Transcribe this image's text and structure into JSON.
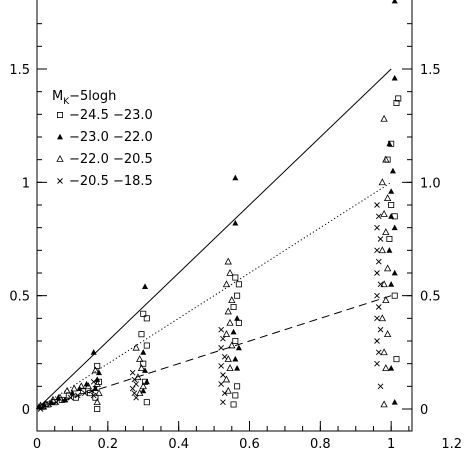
{
  "chart_data": {
    "type": "scatter",
    "xlim": [
      0,
      1.2
    ],
    "ylim": [
      -0.05,
      1.8
    ],
    "x_ticks": [
      0,
      0.2,
      0.4,
      0.6,
      0.8,
      1,
      1.2
    ],
    "x_tick_labels": [
      "0",
      "0.2",
      "0.4",
      "0.6",
      "0.8",
      "1",
      "1.2"
    ],
    "y_ticks": [
      0,
      0.5,
      1,
      1.5
    ],
    "y_tick_labels_left": [
      "0",
      "0.5",
      "1",
      "1.5"
    ],
    "y_tick_labels_right": [
      "0",
      "0.5",
      "1.0",
      "1.5"
    ],
    "grid": false,
    "legend": {
      "title_main": "M",
      "title_sub": "K",
      "title_rest": "−5logh",
      "placement": "top-left",
      "entries": [
        "−24.5  −23.0",
        "−23.0  −22.0",
        "−22.0  −20.5",
        "−20.5  −18.5"
      ]
    },
    "reference_lines": [
      {
        "style": "solid",
        "slope": 1.5
      },
      {
        "style": "dotted",
        "slope": 1.0
      },
      {
        "style": "dashed",
        "slope": 0.5
      }
    ],
    "series": [
      {
        "marker": "open-square",
        "points": [
          [
            0.015,
            0.01
          ],
          [
            0.03,
            0.02
          ],
          [
            0.05,
            0.03
          ],
          [
            0.07,
            0.04
          ],
          [
            0.09,
            0.06
          ],
          [
            0.11,
            0.05
          ],
          [
            0.13,
            0.08
          ],
          [
            0.15,
            0.07
          ],
          [
            0.17,
            0.19
          ],
          [
            0.175,
            0.12
          ],
          [
            0.165,
            0.05
          ],
          [
            0.17,
            0.0
          ],
          [
            0.3,
            0.42
          ],
          [
            0.31,
            0.4
          ],
          [
            0.295,
            0.33
          ],
          [
            0.31,
            0.28
          ],
          [
            0.3,
            0.2
          ],
          [
            0.305,
            0.12
          ],
          [
            0.31,
            0.03
          ],
          [
            0.56,
            0.58
          ],
          [
            0.57,
            0.55
          ],
          [
            0.565,
            0.5
          ],
          [
            0.555,
            0.45
          ],
          [
            0.57,
            0.38
          ],
          [
            0.56,
            0.3
          ],
          [
            0.565,
            0.1
          ],
          [
            0.56,
            0.06
          ],
          [
            0.555,
            0.02
          ],
          [
            1.02,
            1.37
          ],
          [
            1.015,
            1.35
          ],
          [
            1.0,
            1.17
          ],
          [
            0.99,
            1.1
          ],
          [
            1.0,
            0.9
          ],
          [
            1.01,
            0.85
          ],
          [
            0.995,
            0.75
          ],
          [
            1.01,
            0.5
          ],
          [
            1.015,
            0.22
          ]
        ]
      },
      {
        "marker": "filled-triangle",
        "points": [
          [
            0.005,
            0.01
          ],
          [
            0.02,
            0.02
          ],
          [
            0.04,
            0.03
          ],
          [
            0.06,
            0.05
          ],
          [
            0.08,
            0.04
          ],
          [
            0.1,
            0.07
          ],
          [
            0.12,
            0.09
          ],
          [
            0.14,
            0.11
          ],
          [
            0.16,
            0.25
          ],
          [
            0.175,
            0.16
          ],
          [
            0.17,
            0.13
          ],
          [
            0.165,
            0.09
          ],
          [
            0.305,
            0.54
          ],
          [
            0.3,
            0.25
          ],
          [
            0.305,
            0.17
          ],
          [
            0.31,
            0.12
          ],
          [
            0.3,
            0.08
          ],
          [
            0.56,
            1.02
          ],
          [
            0.56,
            0.82
          ],
          [
            0.565,
            0.4
          ],
          [
            0.555,
            0.34
          ],
          [
            0.57,
            0.27
          ],
          [
            0.56,
            0.22
          ],
          [
            0.565,
            0.18
          ],
          [
            1.01,
            1.8
          ],
          [
            1.01,
            1.46
          ],
          [
            0.995,
            1.17
          ],
          [
            1.005,
            1.05
          ],
          [
            1.0,
            0.96
          ],
          [
            1.0,
            0.85
          ],
          [
            1.01,
            0.8
          ],
          [
            0.995,
            0.7
          ],
          [
            1.01,
            0.6
          ],
          [
            1.0,
            0.55
          ],
          [
            1.0,
            0.18
          ],
          [
            1.01,
            0.03
          ]
        ]
      },
      {
        "marker": "open-triangle",
        "points": [
          [
            0.01,
            0.015
          ],
          [
            0.025,
            0.02
          ],
          [
            0.045,
            0.04
          ],
          [
            0.065,
            0.05
          ],
          [
            0.085,
            0.08
          ],
          [
            0.105,
            0.09
          ],
          [
            0.125,
            0.1
          ],
          [
            0.145,
            0.1
          ],
          [
            0.165,
            0.17
          ],
          [
            0.17,
            0.11
          ],
          [
            0.175,
            0.07
          ],
          [
            0.17,
            0.03
          ],
          [
            0.28,
            0.27
          ],
          [
            0.29,
            0.22
          ],
          [
            0.295,
            0.18
          ],
          [
            0.285,
            0.14
          ],
          [
            0.3,
            0.1
          ],
          [
            0.29,
            0.07
          ],
          [
            0.54,
            0.65
          ],
          [
            0.545,
            0.6
          ],
          [
            0.535,
            0.55
          ],
          [
            0.55,
            0.48
          ],
          [
            0.54,
            0.43
          ],
          [
            0.545,
            0.38
          ],
          [
            0.535,
            0.33
          ],
          [
            0.55,
            0.28
          ],
          [
            0.54,
            0.22
          ],
          [
            0.545,
            0.18
          ],
          [
            0.535,
            0.13
          ],
          [
            0.54,
            0.08
          ],
          [
            0.98,
            1.28
          ],
          [
            0.985,
            1.1
          ],
          [
            0.975,
            1.0
          ],
          [
            0.99,
            0.93
          ],
          [
            0.98,
            0.86
          ],
          [
            0.985,
            0.78
          ],
          [
            0.975,
            0.7
          ],
          [
            0.99,
            0.62
          ],
          [
            0.98,
            0.55
          ],
          [
            0.985,
            0.48
          ],
          [
            0.975,
            0.4
          ],
          [
            0.99,
            0.33
          ],
          [
            0.98,
            0.25
          ],
          [
            0.985,
            0.18
          ],
          [
            0.98,
            0.02
          ]
        ]
      },
      {
        "marker": "cross",
        "points": [
          [
            0.01,
            0.0
          ],
          [
            0.02,
            0.01
          ],
          [
            0.035,
            0.02
          ],
          [
            0.055,
            0.03
          ],
          [
            0.075,
            0.04
          ],
          [
            0.095,
            0.05
          ],
          [
            0.115,
            0.06
          ],
          [
            0.135,
            0.07
          ],
          [
            0.155,
            0.08
          ],
          [
            0.16,
            0.12
          ],
          [
            0.165,
            0.09
          ],
          [
            0.16,
            0.06
          ],
          [
            0.27,
            0.16
          ],
          [
            0.275,
            0.13
          ],
          [
            0.28,
            0.11
          ],
          [
            0.27,
            0.09
          ],
          [
            0.275,
            0.07
          ],
          [
            0.28,
            0.05
          ],
          [
            0.52,
            0.35
          ],
          [
            0.525,
            0.31
          ],
          [
            0.52,
            0.27
          ],
          [
            0.53,
            0.23
          ],
          [
            0.52,
            0.19
          ],
          [
            0.525,
            0.15
          ],
          [
            0.52,
            0.11
          ],
          [
            0.53,
            0.07
          ],
          [
            0.525,
            0.03
          ],
          [
            0.96,
            0.9
          ],
          [
            0.965,
            0.85
          ],
          [
            0.96,
            0.8
          ],
          [
            0.97,
            0.75
          ],
          [
            0.96,
            0.7
          ],
          [
            0.965,
            0.65
          ],
          [
            0.96,
            0.6
          ],
          [
            0.97,
            0.55
          ],
          [
            0.96,
            0.5
          ],
          [
            0.965,
            0.45
          ],
          [
            0.96,
            0.4
          ],
          [
            0.97,
            0.35
          ],
          [
            0.96,
            0.3
          ],
          [
            0.965,
            0.25
          ],
          [
            0.96,
            0.2
          ],
          [
            0.97,
            0.1
          ]
        ]
      }
    ]
  }
}
